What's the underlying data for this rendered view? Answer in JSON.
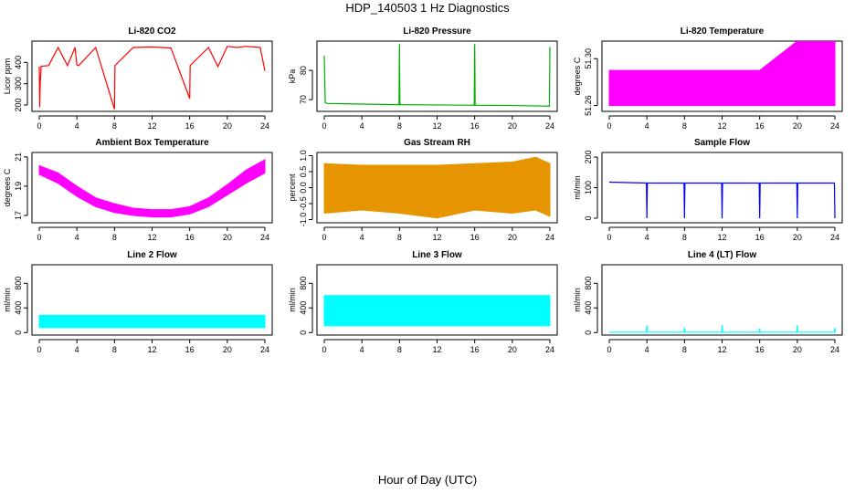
{
  "title": "HDP_140503  1 Hz Diagnostics",
  "xlabel": "Hour of Day (UTC)",
  "chart_data": [
    {
      "type": "line",
      "title": "Li-820 CO2",
      "ylabel": "Licor ppm",
      "color": "#ff0000",
      "xlim": [
        0,
        24
      ],
      "ylim": [
        170,
        500
      ],
      "yticks": [
        200,
        300,
        400
      ],
      "xticks": [
        0,
        4,
        8,
        12,
        16,
        20,
        24
      ],
      "series": [
        {
          "x": [
            0,
            0.05,
            0.1,
            0.2,
            1.0,
            2.0,
            3.0,
            3.8,
            4.0,
            4.2,
            6.0,
            8.0,
            8.05,
            10.0,
            12.0,
            13.0,
            14.0,
            16.0,
            16.05,
            18.0,
            19.0,
            20.0,
            21.0,
            22.0,
            23.5,
            24.0
          ],
          "y": [
            380,
            190,
            300,
            382,
            385,
            470,
            385,
            470,
            388,
            385,
            470,
            180,
            385,
            470,
            472,
            470,
            468,
            230,
            385,
            470,
            380,
            475,
            470,
            475,
            470,
            360
          ]
        }
      ]
    },
    {
      "type": "line",
      "title": "Li-820 Pressure",
      "ylabel": "kPa",
      "color": "#00b000",
      "xlim": [
        0,
        24
      ],
      "ylim": [
        66,
        90
      ],
      "yticks": [
        70,
        80
      ],
      "xticks": [
        0,
        4,
        8,
        12,
        16,
        20,
        24
      ],
      "series": [
        {
          "x": [
            0,
            0.1,
            0.3,
            4.0,
            7.95,
            8.0,
            8.05,
            12.0,
            15.95,
            16.0,
            16.05,
            20.0,
            23.95,
            24.0
          ],
          "y": [
            85,
            69,
            68.7,
            68.5,
            68.3,
            89,
            68.3,
            68.2,
            68.1,
            89,
            68.1,
            68.0,
            67.8,
            88
          ]
        }
      ]
    },
    {
      "type": "line",
      "title": "Li-820 Temperature",
      "ylabel": "degrees C",
      "color": "#ff00ff",
      "xlim": [
        0,
        24
      ],
      "ylim": [
        51.255,
        51.315
      ],
      "yticks": [
        51.26,
        51.3
      ],
      "xticks": [
        0,
        4,
        8,
        12,
        16,
        20,
        24
      ],
      "series": [
        {
          "x": [
            0,
            4,
            8,
            12,
            16,
            20,
            24
          ],
          "y_min": [
            51.26,
            51.26,
            51.26,
            51.26,
            51.26,
            51.26,
            51.26
          ],
          "y_max": [
            51.29,
            51.29,
            51.29,
            51.29,
            51.29,
            51.315,
            51.315
          ]
        }
      ]
    },
    {
      "type": "area",
      "title": "Ambient Box Temperature",
      "ylabel": "degrees C",
      "color": "#ff00ff",
      "xlim": [
        0,
        24
      ],
      "ylim": [
        16.5,
        21.3
      ],
      "yticks": [
        17,
        19,
        21
      ],
      "xticks": [
        0,
        4,
        8,
        12,
        16,
        20,
        24
      ],
      "series": [
        {
          "x": [
            0,
            2,
            4,
            6,
            8,
            10,
            12,
            14,
            16,
            18,
            20,
            22,
            24
          ],
          "y_min": [
            19.8,
            19.2,
            18.3,
            17.6,
            17.2,
            17.0,
            16.9,
            16.9,
            17.1,
            17.6,
            18.4,
            19.2,
            19.9
          ],
          "y_max": [
            20.4,
            19.9,
            19.0,
            18.2,
            17.8,
            17.5,
            17.4,
            17.4,
            17.6,
            18.2,
            19.1,
            20.1,
            20.8
          ]
        }
      ]
    },
    {
      "type": "area",
      "title": "Gas Stream RH",
      "ylabel": "percent",
      "color": "#e69500",
      "xlim": [
        0,
        24
      ],
      "ylim": [
        -1.1,
        1.1
      ],
      "yticks": [
        -1.0,
        -0.5,
        0.0,
        0.5,
        1.0
      ],
      "xticks": [
        0,
        4,
        8,
        12,
        16,
        20,
        24
      ],
      "series": [
        {
          "x": [
            0,
            4,
            8,
            12,
            16,
            20,
            22.5,
            24
          ],
          "y_min": [
            -0.8,
            -0.7,
            -0.8,
            -0.95,
            -0.7,
            -0.8,
            -0.7,
            -0.9
          ],
          "y_max": [
            0.75,
            0.7,
            0.7,
            0.7,
            0.75,
            0.8,
            0.95,
            0.75
          ]
        }
      ]
    },
    {
      "type": "line",
      "title": "Sample Flow",
      "ylabel": "ml/min",
      "color": "#0000ff",
      "xlim": [
        0,
        24
      ],
      "ylim": [
        -15,
        215
      ],
      "yticks": [
        0,
        100,
        200
      ],
      "xticks": [
        0,
        4,
        8,
        12,
        16,
        20,
        24
      ],
      "series": [
        {
          "x": [
            0,
            3.95,
            4.0,
            4.05,
            7.95,
            8.0,
            8.05,
            11.95,
            12.0,
            12.05,
            15.95,
            16.0,
            16.05,
            19.95,
            20.0,
            20.05,
            23.95,
            24.0
          ],
          "y": [
            118,
            115,
            0,
            115,
            115,
            0,
            115,
            115,
            0,
            115,
            115,
            0,
            115,
            115,
            0,
            115,
            115,
            0
          ]
        }
      ]
    },
    {
      "type": "area",
      "title": "Line 2 Flow",
      "ylabel": "ml/min",
      "color": "#00ffff",
      "xlim": [
        0,
        24
      ],
      "ylim": [
        -40,
        1100
      ],
      "yticks": [
        0,
        400,
        800
      ],
      "xticks": [
        0,
        4,
        8,
        12,
        16,
        20,
        24
      ],
      "series": [
        {
          "x": [
            0,
            4,
            8,
            12,
            16,
            20,
            24
          ],
          "y_min": [
            80,
            80,
            80,
            80,
            80,
            80,
            80
          ],
          "y_max": [
            280,
            280,
            280,
            280,
            280,
            280,
            280
          ]
        }
      ]
    },
    {
      "type": "area",
      "title": "Line 3 Flow",
      "ylabel": "ml/min",
      "color": "#00ffff",
      "xlim": [
        0,
        24
      ],
      "ylim": [
        -40,
        1100
      ],
      "yticks": [
        0,
        400,
        800
      ],
      "xticks": [
        0,
        4,
        8,
        12,
        16,
        20,
        24
      ],
      "series": [
        {
          "x": [
            0,
            4,
            8,
            12,
            16,
            20,
            24
          ],
          "y_min": [
            110,
            110,
            110,
            110,
            110,
            110,
            110
          ],
          "y_max": [
            600,
            600,
            600,
            600,
            600,
            600,
            600
          ]
        }
      ]
    },
    {
      "type": "line",
      "title": "Line 4 (LT) Flow",
      "ylabel": "ml/min",
      "color": "#00ffff",
      "xlim": [
        0,
        24
      ],
      "ylim": [
        -40,
        1100
      ],
      "yticks": [
        0,
        400,
        800
      ],
      "xticks": [
        0,
        4,
        8,
        12,
        16,
        20,
        24
      ],
      "series": [
        {
          "x": [
            0,
            3.95,
            4.0,
            4.05,
            7.95,
            8.0,
            8.05,
            11.95,
            12.0,
            12.05,
            15.95,
            16.0,
            16.05,
            19.95,
            20.0,
            20.05,
            23.95,
            24.0,
            24.05
          ],
          "y": [
            5,
            5,
            120,
            5,
            5,
            80,
            5,
            5,
            120,
            5,
            5,
            70,
            5,
            5,
            120,
            5,
            5,
            80,
            5
          ]
        }
      ]
    }
  ]
}
